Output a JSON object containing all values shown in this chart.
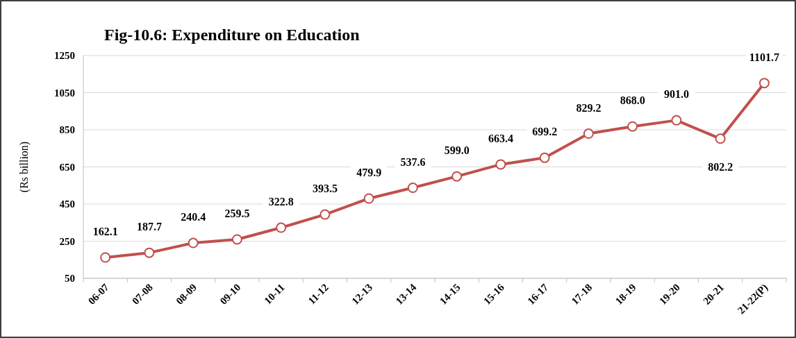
{
  "chart_data": {
    "type": "line",
    "title": "Fig-10.6: Expenditure on Education",
    "ylabel": "(Rs billion)",
    "categories": [
      "06-07",
      "07-08",
      "08-09",
      "09-10",
      "10-11",
      "11-12",
      "12-13",
      "13-14",
      "14-15",
      "15-16",
      "16-17",
      "17-18",
      "18-19",
      "19-20",
      "20-21",
      "21-22(P)"
    ],
    "series": [
      {
        "color": "#c0504d",
        "values": [
          162.1,
          187.7,
          240.4,
          259.5,
          322.8,
          393.5,
          479.9,
          537.6,
          599.0,
          663.4,
          699.2,
          829.2,
          868.0,
          901.0,
          802.2,
          1101.7
        ],
        "value_labels": [
          "162.1",
          "187.7",
          "240.4",
          "259.5",
          "322.8",
          "393.5",
          "479.9",
          "537.6",
          "599.0",
          "663.4",
          "699.2",
          "829.2",
          "868.0",
          "901.0",
          "802.2",
          "1101.7"
        ]
      }
    ],
    "ylim": [
      50,
      1250
    ],
    "yticks": [
      50,
      250,
      450,
      650,
      850,
      1050,
      1250
    ],
    "grid": "y",
    "marker": "circle"
  }
}
